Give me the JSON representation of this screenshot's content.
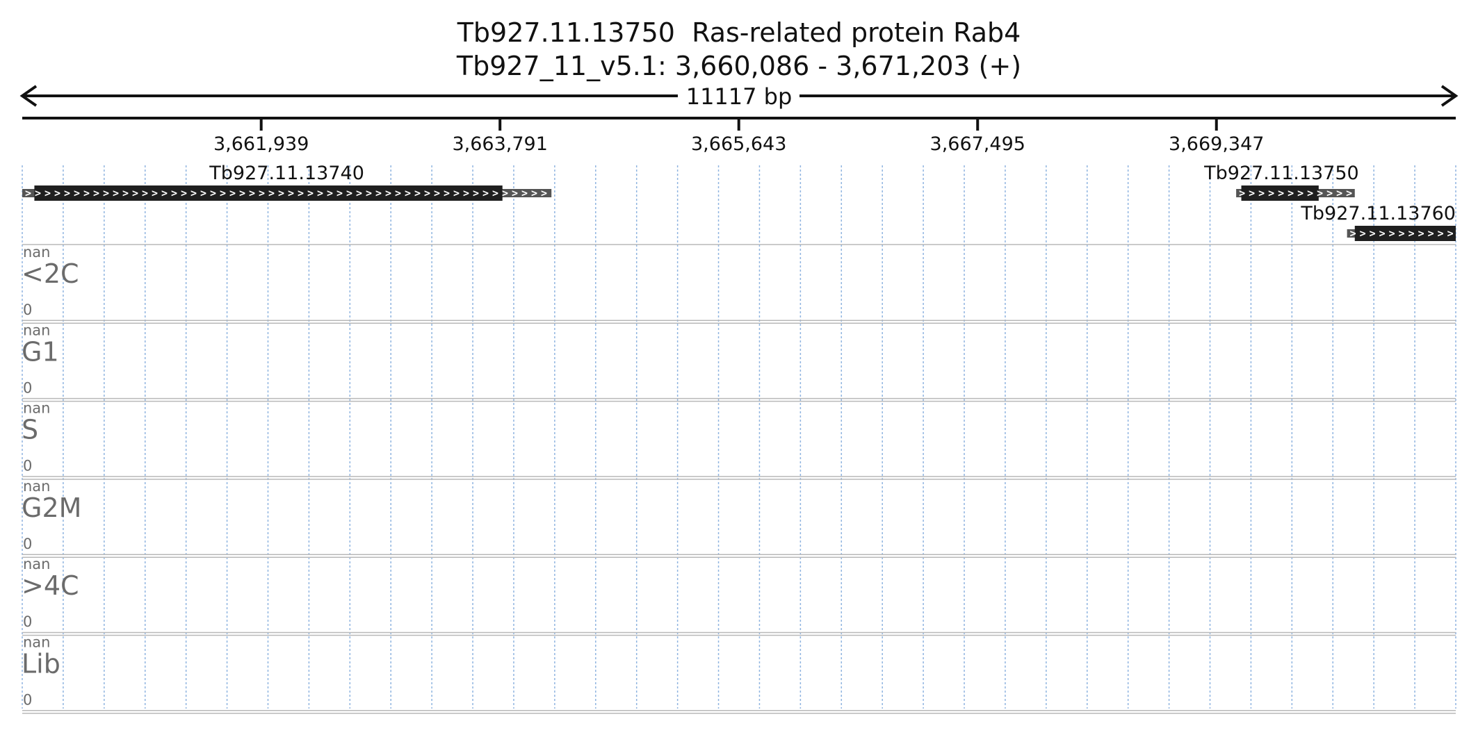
{
  "header": {
    "title_line1": "Tb927.11.13750  Ras-related protein Rab4",
    "title_line2": "Tb927_11_v5.1: 3,660,086 - 3,671,203 (+)",
    "span_label": "11117 bp"
  },
  "region": {
    "start": 3660086,
    "end": 3671203
  },
  "ticks": [
    {
      "value": 3661939,
      "label": "3,661,939"
    },
    {
      "value": 3663791,
      "label": "3,663,791"
    },
    {
      "value": 3665643,
      "label": "3,665,643"
    },
    {
      "value": 3667495,
      "label": "3,667,495"
    },
    {
      "value": 3669347,
      "label": "3,669,347"
    }
  ],
  "genes": [
    {
      "name": "Tb927.11.13740",
      "strand": "+",
      "row": 0,
      "utr5_start": 3660086,
      "cds_start": 3660180,
      "cds_end": 3663810,
      "utr3_end": 3664190
    },
    {
      "name": "Tb927.11.13750",
      "strand": "+",
      "row": 0,
      "utr5_start": 3669500,
      "cds_start": 3669540,
      "cds_end": 3670140,
      "utr3_end": 3670420
    },
    {
      "name": "Tb927.11.13760",
      "strand": "+",
      "row": 1,
      "utr5_start": 3670360,
      "cds_start": 3670420,
      "cds_end": 3671203,
      "utr3_end": 3671203
    }
  ],
  "tracks": [
    {
      "name": "<2C",
      "max_label": "nan",
      "min_label": "0"
    },
    {
      "name": "G1",
      "max_label": "nan",
      "min_label": "0"
    },
    {
      "name": "S",
      "max_label": "nan",
      "min_label": "0"
    },
    {
      "name": "G2M",
      "max_label": "nan",
      "min_label": "0"
    },
    {
      "name": ">4C",
      "max_label": "nan",
      "min_label": "0"
    },
    {
      "name": "Lib",
      "max_label": "nan",
      "min_label": "0"
    }
  ],
  "colors": {
    "cds": "#1f1f1f",
    "utr": "#555555",
    "grid": "#8fb4e0",
    "track_divider": "#b8b8b8",
    "track_text": "#6b6b6b"
  }
}
